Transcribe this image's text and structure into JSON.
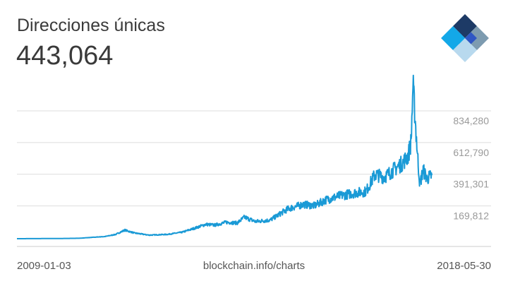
{
  "header": {
    "title": "Direcciones únicas",
    "value": "443,064"
  },
  "logo": {
    "icon": "blockchain-logo-icon"
  },
  "footer": {
    "start_date": "2009-01-03",
    "source": "blockchain.info/charts",
    "end_date": "2018-05-30"
  },
  "colors": {
    "line": "#1a9ad6",
    "grid": "#dddddd",
    "axis": "#cccccc",
    "tick": "#9a9a9a"
  },
  "chart_data": {
    "type": "line",
    "title": "Direcciones únicas",
    "xlabel": "",
    "ylabel": "",
    "xlim": [
      "2009-01-03",
      "2018-05-30"
    ],
    "ylim": [
      0,
      834280
    ],
    "ytick_values": [
      169812,
      391301,
      612790,
      834280
    ],
    "ytick_labels": [
      "169,812",
      "391,301",
      "612,790",
      "834,280"
    ],
    "grid": true,
    "series": [
      {
        "name": "",
        "color": "#1a9ad6",
        "points": [
          [
            "2009-01-03",
            0
          ],
          [
            "2009-06-01",
            500
          ],
          [
            "2010-01-01",
            1500
          ],
          [
            "2010-06-01",
            3000
          ],
          [
            "2010-10-01",
            10000
          ],
          [
            "2011-01-01",
            15000
          ],
          [
            "2011-04-01",
            30000
          ],
          [
            "2011-06-15",
            60000
          ],
          [
            "2011-09-01",
            40000
          ],
          [
            "2012-01-01",
            25000
          ],
          [
            "2012-06-01",
            30000
          ],
          [
            "2012-10-01",
            45000
          ],
          [
            "2013-01-01",
            70000
          ],
          [
            "2013-04-15",
            100000
          ],
          [
            "2013-07-01",
            95000
          ],
          [
            "2013-10-01",
            115000
          ],
          [
            "2014-01-01",
            110000
          ],
          [
            "2014-03-01",
            150000
          ],
          [
            "2014-06-01",
            120000
          ],
          [
            "2014-10-01",
            130000
          ],
          [
            "2015-01-01",
            180000
          ],
          [
            "2015-03-01",
            210000
          ],
          [
            "2015-07-01",
            240000
          ],
          [
            "2015-10-01",
            230000
          ],
          [
            "2016-01-01",
            270000
          ],
          [
            "2016-05-01",
            300000
          ],
          [
            "2016-09-01",
            320000
          ],
          [
            "2016-12-01",
            330000
          ],
          [
            "2017-01-01",
            380000
          ],
          [
            "2017-02-15",
            450000
          ],
          [
            "2017-05-01",
            430000
          ],
          [
            "2017-08-01",
            490000
          ],
          [
            "2017-10-01",
            530000
          ],
          [
            "2017-11-15",
            580000
          ],
          [
            "2017-12-10",
            680000
          ],
          [
            "2017-12-25",
            1070000
          ],
          [
            "2018-01-08",
            900000
          ],
          [
            "2018-02-01",
            580000
          ],
          [
            "2018-02-20",
            380000
          ],
          [
            "2018-03-20",
            480000
          ],
          [
            "2018-04-20",
            420000
          ],
          [
            "2018-05-30",
            443064
          ]
        ]
      }
    ]
  }
}
